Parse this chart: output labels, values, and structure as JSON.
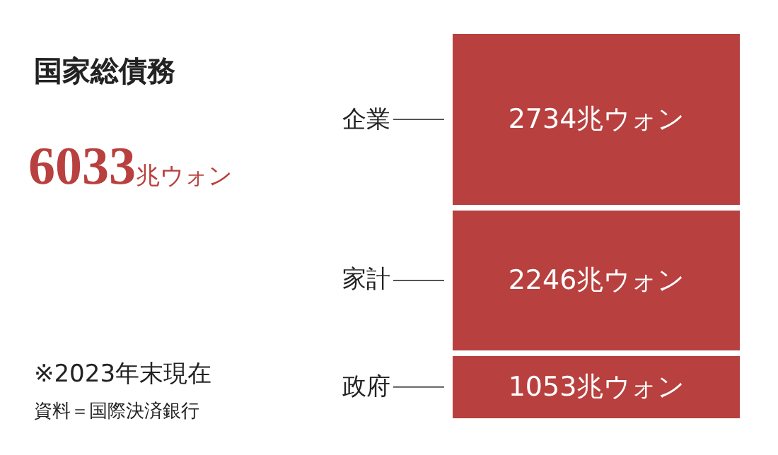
{
  "chart_data": {
    "type": "bar",
    "stacked": true,
    "title": "国家総債務",
    "subtitle": "6033兆ウォン",
    "categories": [
      null
    ],
    "legend": false,
    "series": [
      {
        "name": "政府",
        "color": "#b8403e",
        "values": [
          1053
        ],
        "value_labels": [
          "1053兆ウォン"
        ]
      },
      {
        "name": "家計",
        "color": "#b8403e",
        "values": [
          2246
        ],
        "value_labels": [
          "2246兆ウォン"
        ]
      },
      {
        "name": "企業",
        "color": "#b8403e",
        "values": [
          2734
        ],
        "value_labels": [
          "2734兆ウォン"
        ]
      }
    ],
    "annotations": [
      "※2023年末現在",
      "資料＝国際決済銀行"
    ]
  }
}
